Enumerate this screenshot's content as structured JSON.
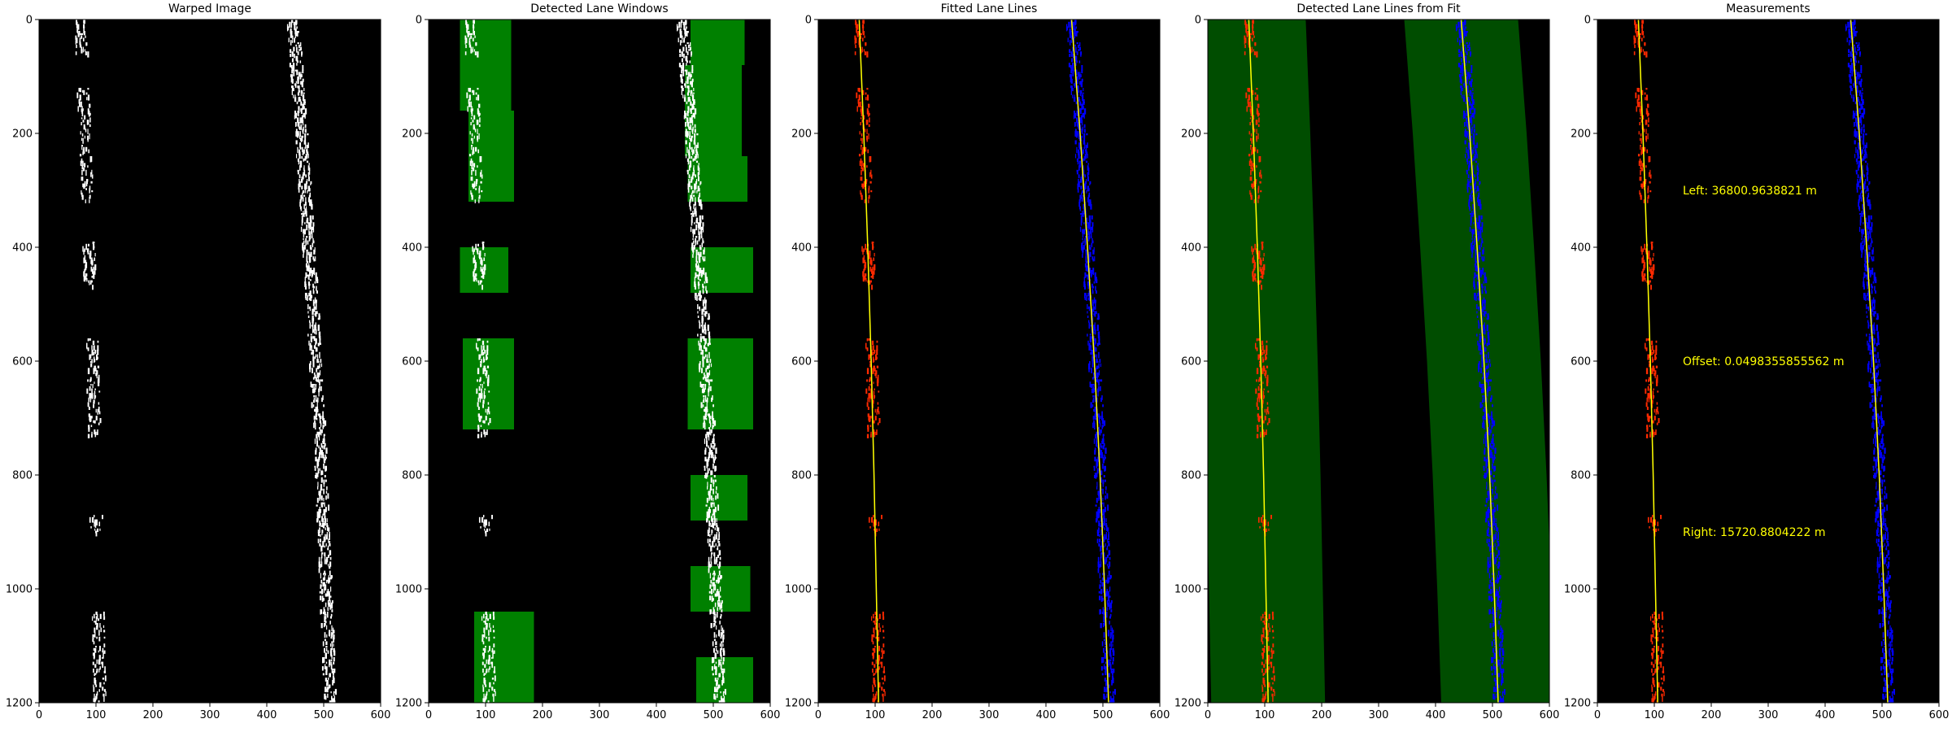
{
  "figure": {
    "background": "#ffffff"
  },
  "chart_data": [
    {
      "type": "image",
      "title": "Warped Image",
      "xlim": [
        0,
        600
      ],
      "ylim": [
        1200,
        0
      ],
      "xticks": [
        "0",
        "100",
        "200",
        "300",
        "400",
        "500",
        "600"
      ],
      "yticks": [
        "0",
        "200",
        "400",
        "600",
        "800",
        "1000",
        "1200"
      ],
      "layers": [
        "binary-lane-pixels"
      ]
    },
    {
      "type": "image",
      "title": "Detected Lane Windows",
      "xlim": [
        0,
        600
      ],
      "ylim": [
        1200,
        0
      ],
      "xticks": [
        "0",
        "100",
        "200",
        "300",
        "400",
        "500",
        "600"
      ],
      "yticks": [
        "0",
        "200",
        "400",
        "600",
        "800",
        "1000",
        "1200"
      ],
      "layers": [
        "binary-lane-pixels",
        "search-windows"
      ]
    },
    {
      "type": "image",
      "title": "Fitted Lane Lines",
      "xlim": [
        0,
        600
      ],
      "ylim": [
        1200,
        0
      ],
      "xticks": [
        "0",
        "100",
        "200",
        "300",
        "400",
        "500",
        "600"
      ],
      "yticks": [
        "0",
        "200",
        "400",
        "600",
        "800",
        "1000",
        "1200"
      ],
      "layers": [
        "left-lane-pixels-red",
        "right-lane-pixels-blue",
        "fit-lines-yellow"
      ]
    },
    {
      "type": "image",
      "title": "Detected Lane Lines from Fit",
      "xlim": [
        0,
        600
      ],
      "ylim": [
        1200,
        0
      ],
      "xticks": [
        "0",
        "100",
        "200",
        "300",
        "400",
        "500",
        "600"
      ],
      "yticks": [
        "0",
        "200",
        "400",
        "600",
        "800",
        "1000",
        "1200"
      ],
      "layers": [
        "search-margin-bands",
        "left-lane-pixels-red",
        "right-lane-pixels-blue",
        "fit-lines-yellow"
      ]
    },
    {
      "type": "image",
      "title": "Measurements",
      "xlim": [
        0,
        600
      ],
      "ylim": [
        1200,
        0
      ],
      "xticks": [
        "0",
        "100",
        "200",
        "300",
        "400",
        "500",
        "600"
      ],
      "yticks": [
        "0",
        "200",
        "400",
        "600",
        "800",
        "1000",
        "1200"
      ],
      "layers": [
        "left-lane-pixels-red",
        "right-lane-pixels-blue",
        "fit-lines-yellow",
        "annotations"
      ],
      "annotations": [
        {
          "text": "Left: 36800.9638821 m",
          "x": 150,
          "y": 300
        },
        {
          "text": "Offset: 0.0498355855562 m",
          "x": 150,
          "y": 600
        },
        {
          "text": "Right: 15720.8804222 m",
          "x": 150,
          "y": 900
        }
      ]
    }
  ],
  "lane_fits": {
    "left": [
      [
        0,
        72
      ],
      [
        200,
        80
      ],
      [
        400,
        87
      ],
      [
        600,
        93
      ],
      [
        800,
        98
      ],
      [
        1000,
        102
      ],
      [
        1200,
        106
      ]
    ],
    "right": [
      [
        0,
        445
      ],
      [
        200,
        460
      ],
      [
        400,
        473
      ],
      [
        600,
        485
      ],
      [
        800,
        495
      ],
      [
        1000,
        503
      ],
      [
        1200,
        510
      ]
    ]
  },
  "windows": {
    "left": [
      [
        0,
        160,
        55,
        145
      ],
      [
        160,
        320,
        70,
        150
      ],
      [
        400,
        480,
        55,
        140
      ],
      [
        560,
        720,
        60,
        150
      ],
      [
        1040,
        1200,
        80,
        185
      ]
    ],
    "right": [
      [
        0,
        80,
        460,
        555
      ],
      [
        80,
        240,
        450,
        550
      ],
      [
        240,
        320,
        455,
        560
      ],
      [
        400,
        480,
        460,
        570
      ],
      [
        560,
        720,
        455,
        570
      ],
      [
        800,
        880,
        460,
        560
      ],
      [
        960,
        1040,
        460,
        565
      ],
      [
        1120,
        1200,
        470,
        570
      ]
    ]
  },
  "colors": {
    "lane_pixels": "#ffffff",
    "image_background": "#000000",
    "window_fill": "#008000",
    "left_lane": "#ff2a00",
    "right_lane": "#0000ff",
    "fit_line": "#ffff00",
    "margin_band": "#004d00",
    "annotation_text": "#ffff00"
  }
}
